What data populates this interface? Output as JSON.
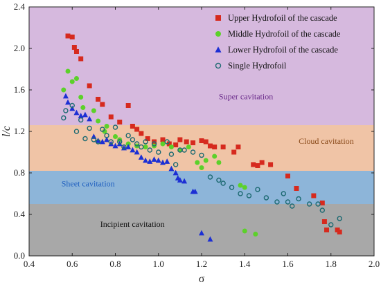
{
  "chart_data": {
    "type": "scatter",
    "xlabel": "σ",
    "ylabel": "l/c",
    "xlim": [
      0.4,
      2.0
    ],
    "ylim": [
      0.0,
      2.4
    ],
    "x_ticks": [
      "0.4",
      "0.6",
      "0.8",
      "1.0",
      "1.2",
      "1.4",
      "1.6",
      "1.8",
      "2.0"
    ],
    "y_ticks": [
      "0.0",
      "0.4",
      "0.8",
      "1.2",
      "1.6",
      "2.0",
      "2.4"
    ],
    "legend_position": "top-right",
    "regions": [
      {
        "label": "Incipient cavitation",
        "y_from": 0.0,
        "y_to": 0.5,
        "color": "#a8a8a8",
        "label_color": "#111111",
        "label_x": 0.73,
        "label_y": 0.28
      },
      {
        "label": "Sheet cavitation",
        "y_from": 0.5,
        "y_to": 0.82,
        "color": "#8db5d9",
        "label_color": "#1f5fbf",
        "label_x": 0.55,
        "label_y": 0.67
      },
      {
        "label": "Cloud cavitation",
        "y_from": 0.82,
        "y_to": 1.26,
        "color": "#f0c4a6",
        "label_color": "#8a4a1a",
        "label_x": 1.65,
        "label_y": 1.08
      },
      {
        "label": "Super cavitation",
        "y_from": 1.26,
        "y_to": 2.4,
        "color": "#d6b9de",
        "label_color": "#6a2a8a",
        "label_x": 1.28,
        "label_y": 1.51
      }
    ],
    "series": [
      {
        "name": "Upper Hydrofoil of the cascade",
        "marker": "square",
        "color": "#d62a1e",
        "points": [
          [
            0.58,
            2.12
          ],
          [
            0.6,
            2.11
          ],
          [
            0.61,
            2.01
          ],
          [
            0.62,
            1.97
          ],
          [
            0.64,
            1.9
          ],
          [
            0.68,
            1.64
          ],
          [
            0.72,
            1.51
          ],
          [
            0.74,
            1.46
          ],
          [
            0.78,
            1.34
          ],
          [
            0.82,
            1.29
          ],
          [
            0.86,
            1.45
          ],
          [
            0.88,
            1.25
          ],
          [
            0.9,
            1.22
          ],
          [
            0.92,
            1.18
          ],
          [
            0.95,
            1.13
          ],
          [
            0.98,
            1.1
          ],
          [
            1.02,
            1.12
          ],
          [
            1.05,
            1.08
          ],
          [
            1.08,
            1.07
          ],
          [
            1.1,
            1.12
          ],
          [
            1.13,
            1.1
          ],
          [
            1.16,
            1.09
          ],
          [
            1.2,
            1.11
          ],
          [
            1.22,
            1.1
          ],
          [
            1.24,
            1.06
          ],
          [
            1.26,
            1.05
          ],
          [
            1.3,
            1.05
          ],
          [
            1.35,
            1.0
          ],
          [
            1.37,
            1.05
          ],
          [
            1.44,
            0.88
          ],
          [
            1.46,
            0.87
          ],
          [
            1.48,
            0.9
          ],
          [
            1.52,
            0.88
          ],
          [
            1.6,
            0.77
          ],
          [
            1.64,
            0.65
          ],
          [
            1.72,
            0.58
          ],
          [
            1.76,
            0.51
          ],
          [
            1.77,
            0.33
          ],
          [
            1.78,
            0.25
          ],
          [
            1.83,
            0.25
          ],
          [
            1.84,
            0.23
          ]
        ]
      },
      {
        "name": "Middle Hydrofoil of the cascade",
        "marker": "circle",
        "color": "#5cd12a",
        "points": [
          [
            0.56,
            1.6
          ],
          [
            0.58,
            1.78
          ],
          [
            0.6,
            1.68
          ],
          [
            0.62,
            1.71
          ],
          [
            0.64,
            1.53
          ],
          [
            0.65,
            1.43
          ],
          [
            0.7,
            1.4
          ],
          [
            0.72,
            1.3
          ],
          [
            0.75,
            1.2
          ],
          [
            0.76,
            1.25
          ],
          [
            0.8,
            1.15
          ],
          [
            0.82,
            1.12
          ],
          [
            0.86,
            1.08
          ],
          [
            0.9,
            1.06
          ],
          [
            0.94,
            1.05
          ],
          [
            0.98,
            1.06
          ],
          [
            1.02,
            1.08
          ],
          [
            1.06,
            1.05
          ],
          [
            1.1,
            1.02
          ],
          [
            1.14,
            1.05
          ],
          [
            1.18,
            0.9
          ],
          [
            1.2,
            0.85
          ],
          [
            1.22,
            0.92
          ],
          [
            1.26,
            0.96
          ],
          [
            1.28,
            0.9
          ],
          [
            1.38,
            0.68
          ],
          [
            1.4,
            0.66
          ],
          [
            1.4,
            0.24
          ],
          [
            1.45,
            0.21
          ]
        ]
      },
      {
        "name": "Lower Hydrofoil of the cascade",
        "marker": "triangle",
        "color": "#1c2fd4",
        "points": [
          [
            0.57,
            1.54
          ],
          [
            0.58,
            1.48
          ],
          [
            0.6,
            1.42
          ],
          [
            0.62,
            1.38
          ],
          [
            0.64,
            1.35
          ],
          [
            0.66,
            1.36
          ],
          [
            0.68,
            1.32
          ],
          [
            0.7,
            1.15
          ],
          [
            0.72,
            1.11
          ],
          [
            0.74,
            1.1
          ],
          [
            0.76,
            1.12
          ],
          [
            0.78,
            1.08
          ],
          [
            0.8,
            1.06
          ],
          [
            0.82,
            1.08
          ],
          [
            0.84,
            1.04
          ],
          [
            0.86,
            1.05
          ],
          [
            0.88,
            1.02
          ],
          [
            0.9,
            1.0
          ],
          [
            0.92,
            0.95
          ],
          [
            0.94,
            0.92
          ],
          [
            0.96,
            0.91
          ],
          [
            0.98,
            0.93
          ],
          [
            1.0,
            0.92
          ],
          [
            1.02,
            0.9
          ],
          [
            1.04,
            0.91
          ],
          [
            1.06,
            0.84
          ],
          [
            1.08,
            0.8
          ],
          [
            1.09,
            0.75
          ],
          [
            1.1,
            0.73
          ],
          [
            1.12,
            0.72
          ],
          [
            1.16,
            0.62
          ],
          [
            1.17,
            0.62
          ],
          [
            1.2,
            0.22
          ],
          [
            1.24,
            0.16
          ]
        ]
      },
      {
        "name": "Single Hydrofoil",
        "marker": "open-circle",
        "color": "#1d6a72",
        "points": [
          [
            0.56,
            1.33
          ],
          [
            0.57,
            1.4
          ],
          [
            0.6,
            1.45
          ],
          [
            0.62,
            1.2
          ],
          [
            0.64,
            1.31
          ],
          [
            0.66,
            1.13
          ],
          [
            0.68,
            1.23
          ],
          [
            0.7,
            1.12
          ],
          [
            0.72,
            1.1
          ],
          [
            0.74,
            1.22
          ],
          [
            0.76,
            1.16
          ],
          [
            0.78,
            1.1
          ],
          [
            0.8,
            1.24
          ],
          [
            0.82,
            1.1
          ],
          [
            0.84,
            1.05
          ],
          [
            0.86,
            1.16
          ],
          [
            0.88,
            1.12
          ],
          [
            0.9,
            1.08
          ],
          [
            0.92,
            1.05
          ],
          [
            0.94,
            1.1
          ],
          [
            0.96,
            1.02
          ],
          [
            0.98,
            1.08
          ],
          [
            1.0,
            1.0
          ],
          [
            1.04,
            1.1
          ],
          [
            1.06,
            0.98
          ],
          [
            1.08,
            0.88
          ],
          [
            1.1,
            1.02
          ],
          [
            1.12,
            1.02
          ],
          [
            1.16,
            1.0
          ],
          [
            1.2,
            0.97
          ],
          [
            1.24,
            0.76
          ],
          [
            1.28,
            0.73
          ],
          [
            1.3,
            0.7
          ],
          [
            1.34,
            0.66
          ],
          [
            1.38,
            0.6
          ],
          [
            1.42,
            0.58
          ],
          [
            1.46,
            0.64
          ],
          [
            1.5,
            0.56
          ],
          [
            1.55,
            0.52
          ],
          [
            1.58,
            0.6
          ],
          [
            1.6,
            0.52
          ],
          [
            1.62,
            0.48
          ],
          [
            1.65,
            0.55
          ],
          [
            1.7,
            0.5
          ],
          [
            1.74,
            0.5
          ],
          [
            1.76,
            0.44
          ],
          [
            1.8,
            0.3
          ],
          [
            1.84,
            0.36
          ]
        ]
      }
    ]
  }
}
